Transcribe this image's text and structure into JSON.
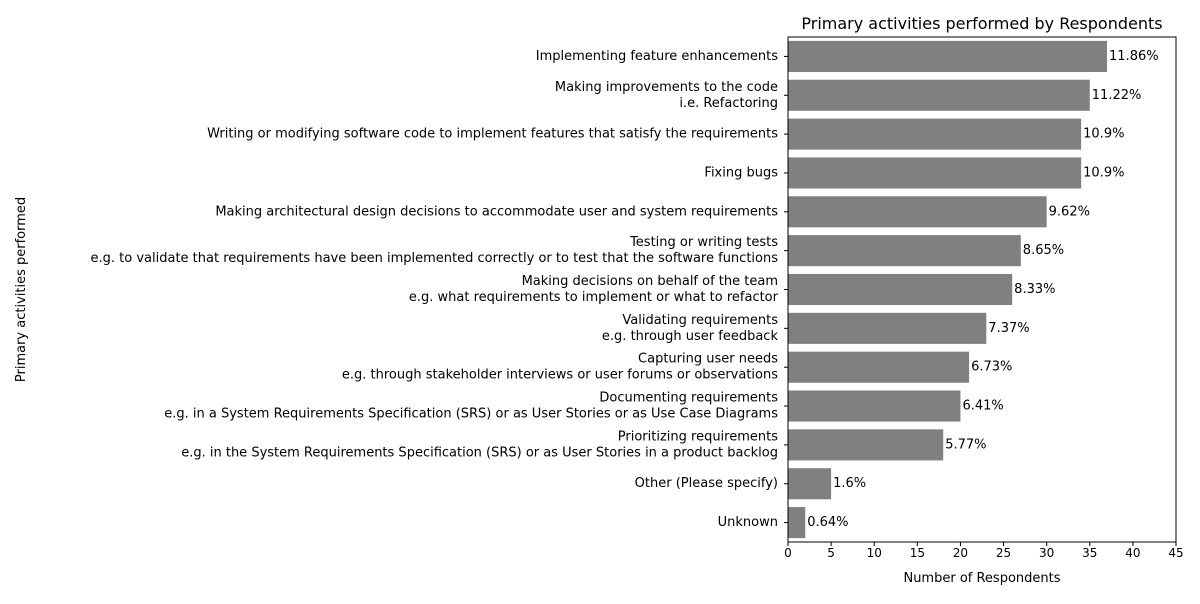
{
  "chart_data": {
    "type": "bar",
    "orientation": "horizontal",
    "title": "Primary activities performed by Respondents",
    "xlabel": "Number of Respondents",
    "ylabel": "Primary activities performed",
    "xlim": [
      0,
      45
    ],
    "xticks": [
      0,
      5,
      10,
      15,
      20,
      25,
      30,
      35,
      40,
      45
    ],
    "bar_color": "#808080",
    "grid": false,
    "categories": [
      [
        "Implementing feature enhancements"
      ],
      [
        "Making improvements to the code",
        "i.e. Refactoring"
      ],
      [
        "Writing or modifying software code to implement features that satisfy the requirements"
      ],
      [
        "Fixing bugs"
      ],
      [
        "Making architectural design decisions to accommodate user and system requirements"
      ],
      [
        "Testing or writing tests",
        "e.g.  to validate that requirements have been implemented correctly or to test that the software functions"
      ],
      [
        "Making decisions on behalf of the team",
        "e.g.  what requirements to implement or what to refactor"
      ],
      [
        "Validating requirements",
        "e.g.  through user feedback"
      ],
      [
        "Capturing user needs",
        "e.g.  through stakeholder interviews or user forums or observations"
      ],
      [
        "Documenting requirements",
        "e.g.  in a System Requirements Specification (SRS) or as User Stories or as Use Case Diagrams"
      ],
      [
        "Prioritizing requirements",
        "e.g.  in the System Requirements Specification (SRS) or as User Stories in a product backlog"
      ],
      [
        "Other (Please specify)"
      ],
      [
        "Unknown"
      ]
    ],
    "values": [
      37,
      35,
      34,
      34,
      30,
      27,
      26,
      23,
      21,
      20,
      18,
      5,
      2
    ],
    "data_labels": [
      "11.86%",
      "11.22%",
      "10.9%",
      "10.9%",
      "9.62%",
      "8.65%",
      "8.33%",
      "7.37%",
      "6.73%",
      "6.41%",
      "5.77%",
      "1.6%",
      "0.64%"
    ]
  }
}
